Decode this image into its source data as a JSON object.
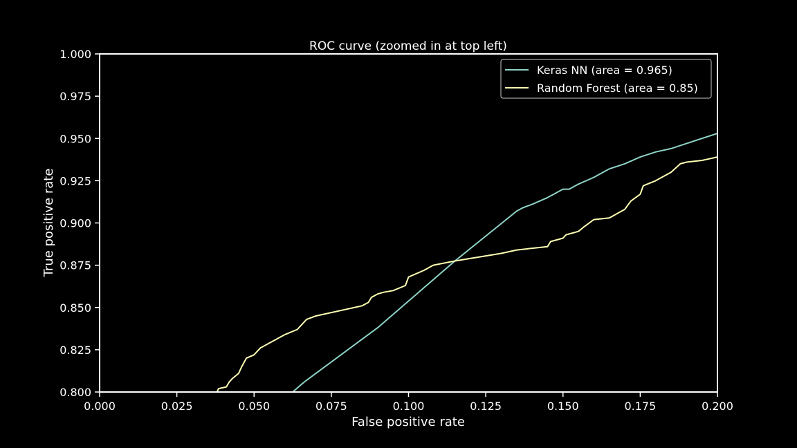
{
  "chart_data": {
    "type": "line",
    "title": "ROC curve (zoomed in at top left)",
    "xlabel": "False positive rate",
    "ylabel": "True positive rate",
    "xlim": [
      0.0,
      0.2
    ],
    "ylim": [
      0.8,
      1.0
    ],
    "xticks": [
      "0.000",
      "0.025",
      "0.050",
      "0.075",
      "0.100",
      "0.125",
      "0.150",
      "0.175",
      "0.200"
    ],
    "yticks": [
      "0.800",
      "0.825",
      "0.850",
      "0.875",
      "0.900",
      "0.925",
      "0.950",
      "0.975",
      "1.000"
    ],
    "grid": false,
    "legend_position": "top-right",
    "background": "#000000",
    "axis_color": "#ffffff",
    "series": [
      {
        "name": "Keras NN (area = 0.965)",
        "color": "#8dd3c7",
        "points": [
          [
            0.0625,
            0.8
          ],
          [
            0.065,
            0.804
          ],
          [
            0.067,
            0.807
          ],
          [
            0.09,
            0.838
          ],
          [
            0.115,
            0.8775
          ],
          [
            0.135,
            0.907
          ],
          [
            0.137,
            0.909
          ],
          [
            0.14,
            0.911
          ],
          [
            0.145,
            0.915
          ],
          [
            0.148,
            0.918
          ],
          [
            0.15,
            0.92
          ],
          [
            0.152,
            0.92
          ],
          [
            0.155,
            0.923
          ],
          [
            0.16,
            0.927
          ],
          [
            0.165,
            0.932
          ],
          [
            0.17,
            0.935
          ],
          [
            0.175,
            0.939
          ],
          [
            0.18,
            0.942
          ],
          [
            0.185,
            0.944
          ],
          [
            0.19,
            0.947
          ],
          [
            0.2,
            0.953
          ]
        ]
      },
      {
        "name": "Random Forest  (area = 0.85)",
        "color": "#ffffb3",
        "points": [
          [
            0.038,
            0.8
          ],
          [
            0.0385,
            0.802
          ],
          [
            0.041,
            0.803
          ],
          [
            0.042,
            0.806
          ],
          [
            0.043,
            0.808
          ],
          [
            0.045,
            0.811
          ],
          [
            0.046,
            0.815
          ],
          [
            0.0475,
            0.82
          ],
          [
            0.05,
            0.822
          ],
          [
            0.052,
            0.826
          ],
          [
            0.06,
            0.834
          ],
          [
            0.064,
            0.837
          ],
          [
            0.067,
            0.843
          ],
          [
            0.07,
            0.845
          ],
          [
            0.085,
            0.851
          ],
          [
            0.087,
            0.853
          ],
          [
            0.088,
            0.856
          ],
          [
            0.09,
            0.858
          ],
          [
            0.092,
            0.859
          ],
          [
            0.095,
            0.86
          ],
          [
            0.099,
            0.863
          ],
          [
            0.1,
            0.868
          ],
          [
            0.105,
            0.872
          ],
          [
            0.108,
            0.875
          ],
          [
            0.115,
            0.8775
          ],
          [
            0.13,
            0.882
          ],
          [
            0.135,
            0.884
          ],
          [
            0.145,
            0.886
          ],
          [
            0.146,
            0.889
          ],
          [
            0.15,
            0.891
          ],
          [
            0.151,
            0.893
          ],
          [
            0.155,
            0.895
          ],
          [
            0.157,
            0.898
          ],
          [
            0.16,
            0.902
          ],
          [
            0.165,
            0.903
          ],
          [
            0.168,
            0.906
          ],
          [
            0.17,
            0.908
          ],
          [
            0.172,
            0.913
          ],
          [
            0.175,
            0.917
          ],
          [
            0.176,
            0.922
          ],
          [
            0.18,
            0.925
          ],
          [
            0.185,
            0.93
          ],
          [
            0.188,
            0.935
          ],
          [
            0.19,
            0.936
          ],
          [
            0.195,
            0.937
          ],
          [
            0.2,
            0.939
          ]
        ]
      }
    ]
  }
}
